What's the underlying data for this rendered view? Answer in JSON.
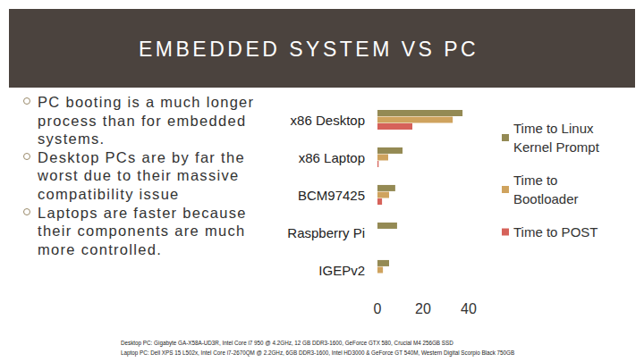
{
  "slide": {
    "title": "EMBEDDED SYSTEM VS PC",
    "bullets": [
      "PC booting is a much longer process than for embedded systems.",
      "Desktop PCs are by far the worst due to their massive compatibility issue",
      "Laptops are faster because their components are much more controlled."
    ],
    "footnote": [
      "Desktop PC: Gigabyte GA-X58A-UD3R, Intel Core i7 950 @ 4.2GHz, 12 GB DDR3-1600, GeForce GTX 580, Crucial M4 256GB SSD",
      "Laptop PC: Dell XPS 15 L502x, Intel Core i7-2670QM @ 2.2GHz, 6GB DDR3-1600, Intel HD3000 & GeForce GT 540M, Western Digital Scorpio Black 750GB"
    ]
  },
  "chart_data": {
    "type": "bar",
    "orientation": "horizontal",
    "categories": [
      "x86 Desktop",
      "x86 Laptop",
      "BCM97425",
      "Raspberry Pi",
      "IGEPv2"
    ],
    "series": [
      {
        "name": "Time to Linux Kernel Prompt",
        "color": "#948a54",
        "values": [
          37.3,
          11,
          7.8,
          8.6,
          5.1
        ]
      },
      {
        "name": "Time to Bootloader",
        "color": "#cfa35e",
        "values": [
          33,
          4.7,
          5.1,
          null,
          2.4
        ]
      },
      {
        "name": "Time to POST",
        "color": "#d6625a",
        "values": [
          15.3,
          0.5,
          2,
          null,
          null
        ]
      }
    ],
    "xlim": [
      0,
      40
    ],
    "xticks": [
      0,
      20,
      40
    ],
    "grid": false,
    "legend": "right"
  }
}
